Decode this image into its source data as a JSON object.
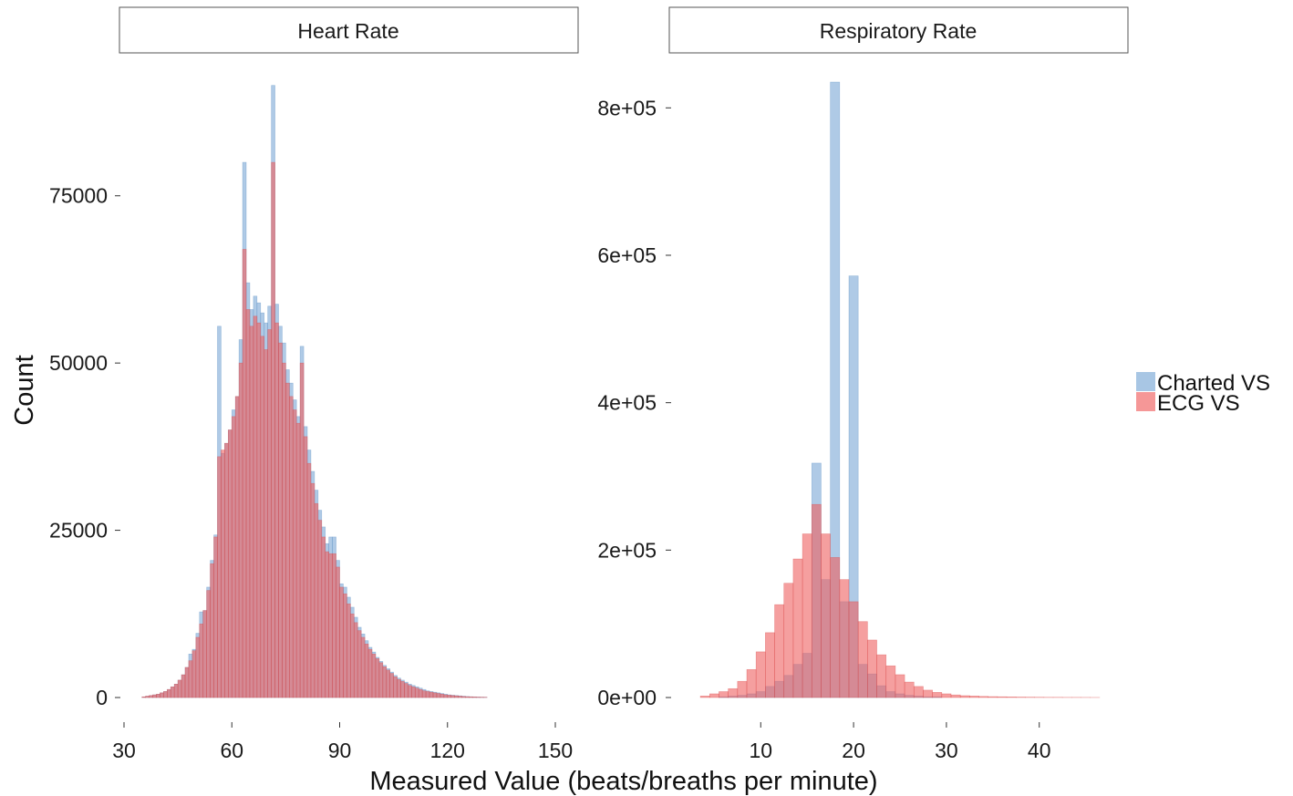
{
  "chart_data": {
    "type": "bar",
    "xlabel": "Measured Value (beats/breaths per minute)",
    "ylabel": "Count",
    "series_names": [
      "Charted VS",
      "ECG VS"
    ],
    "colors": {
      "charted": "#7aa7d6",
      "ecg": "#ef5f5f"
    },
    "legend": {
      "position": "right",
      "items": [
        {
          "name": "Charted VS",
          "color": "#7aa7d6"
        },
        {
          "name": "ECG VS",
          "color": "#ef5f5f"
        }
      ]
    },
    "grid": false,
    "panels": [
      {
        "title": "Heart Rate",
        "xlim": [
          30,
          150
        ],
        "ylim": [
          0,
          92000
        ],
        "xticks": [
          30,
          60,
          90,
          120,
          150
        ],
        "xtick_labels": [
          "30",
          "60",
          "90",
          "120",
          "150"
        ],
        "yticks": [
          0,
          25000,
          50000,
          75000
        ],
        "ytick_labels": [
          "0",
          "25000",
          "50000",
          "75000"
        ],
        "bin_start": 35,
        "bin_width": 1,
        "series": [
          {
            "name": "Charted VS",
            "values": [
              100,
              200,
              300,
              400,
              500,
              700,
              900,
              1200,
              1600,
              2000,
              2600,
              3400,
              4500,
              6500,
              7200,
              9600,
              12800,
              13000,
              16500,
              20500,
              24300,
              55500,
              36500,
              38000,
              40000,
              43000,
              45000,
              53500,
              80000,
              62000,
              58000,
              60000,
              59000,
              57500,
              56000,
              58500,
              91500,
              58800,
              55500,
              53000,
              49000,
              47000,
              44500,
              42000,
              52500,
              40500,
              37000,
              33800,
              31000,
              28000,
              25500,
              23000,
              24000,
              24000,
              20500,
              17000,
              16500,
              15000,
              13500,
              12000,
              10500,
              9500,
              8500,
              7500,
              6800,
              6000,
              5400,
              4800,
              4300,
              3800,
              3300,
              2900,
              2600,
              2300,
              2000,
              1800,
              1600,
              1400,
              1200,
              1000,
              900,
              800,
              700,
              600,
              500,
              400,
              350,
              300,
              250,
              200,
              150,
              120,
              100,
              80,
              60,
              50
            ]
          },
          {
            "name": "ECG VS",
            "values": [
              100,
              200,
              300,
              400,
              500,
              700,
              900,
              1200,
              1600,
              2000,
              2600,
              3400,
              4500,
              5500,
              7000,
              9000,
              11000,
              13000,
              16000,
              20000,
              24000,
              36000,
              37000,
              38000,
              40000,
              42000,
              45000,
              50000,
              67000,
              58000,
              55500,
              57000,
              56000,
              54000,
              52000,
              55000,
              80000,
              56000,
              53000,
              50000,
              47000,
              45000,
              43000,
              41000,
              50000,
              39000,
              35000,
              32000,
              29000,
              26500,
              24000,
              21800,
              21500,
              21500,
              19500,
              16500,
              15500,
              14000,
              12500,
              11200,
              10000,
              9000,
              8000,
              7200,
              6500,
              5800,
              5200,
              4600,
              4100,
              3600,
              3100,
              2700,
              2400,
              2100,
              1800,
              1600,
              1400,
              1200,
              1000,
              900,
              800,
              700,
              600,
              500,
              400,
              350,
              300,
              250,
              200,
              150,
              120,
              100,
              80,
              60,
              50,
              40
            ]
          }
        ]
      },
      {
        "title": "Respiratory Rate",
        "xlim": [
          3,
          47
        ],
        "ylim": [
          0,
          835000
        ],
        "xticks": [
          10,
          20,
          30,
          40
        ],
        "xtick_labels": [
          "10",
          "20",
          "30",
          "40"
        ],
        "yticks": [
          0,
          200000,
          400000,
          600000,
          800000
        ],
        "ytick_labels": [
          "0e+00",
          "2e+05",
          "4e+05",
          "6e+05",
          "8e+05"
        ],
        "bin_start": 3.5,
        "bin_width": 1,
        "series": [
          {
            "name": "Charted VS",
            "values": [
              0,
              0,
              1000,
              2000,
              3000,
              5000,
              8000,
              15000,
              22000,
              30000,
              45000,
              60000,
              318000,
              160000,
              835000,
              130000,
              572000,
              45000,
              32000,
              16000,
              8000,
              5000,
              3000,
              2000,
              1000,
              1000,
              0,
              0,
              0,
              0,
              0,
              0,
              0,
              0,
              0,
              0,
              0,
              0,
              0,
              0,
              0,
              0,
              0
            ]
          },
          {
            "name": "ECG VS",
            "values": [
              2000,
              5000,
              8000,
              12000,
              22000,
              38000,
              62000,
              88000,
              126000,
              155000,
              188000,
              222000,
              262000,
              222000,
              190000,
              160000,
              130000,
              103000,
              78000,
              58000,
              43000,
              31000,
              21000,
              15000,
              10000,
              7000,
              5000,
              3500,
              2500,
              2000,
              1500,
              1200,
              1000,
              800,
              600,
              500,
              400,
              300,
              300,
              200,
              200,
              150,
              100
            ]
          }
        ]
      }
    ]
  }
}
